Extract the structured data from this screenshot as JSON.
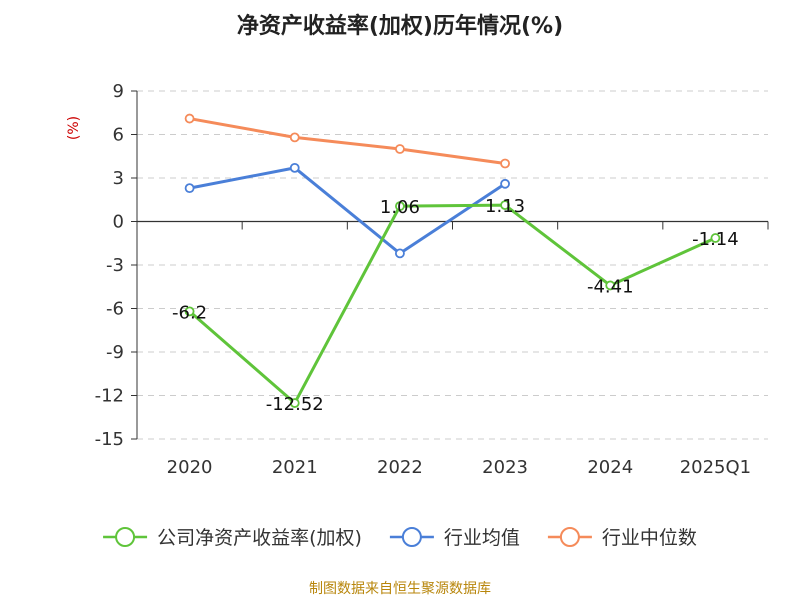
{
  "chart_data": {
    "type": "line",
    "title": "净资产收益率(加权)历年情况(%)",
    "ylabel": "(%)",
    "categories": [
      "2020",
      "2021",
      "2022",
      "2023",
      "2024",
      "2025Q1"
    ],
    "ylim": [
      -15,
      9
    ],
    "yticks": [
      9,
      6,
      3,
      0,
      -3,
      -6,
      -9,
      -12,
      -15
    ],
    "series": [
      {
        "name": "公司净资产收益率(加权)",
        "color": "#5fc43a",
        "values": [
          -6.2,
          -12.52,
          1.06,
          1.13,
          -4.41,
          -1.14
        ],
        "labels": [
          "-6.2",
          "-12.52",
          "1.06",
          "1.13",
          "-4.41",
          "-1.14"
        ]
      },
      {
        "name": "行业均值",
        "color": "#4a7fd8",
        "values": [
          2.3,
          3.7,
          -2.2,
          2.6,
          null,
          null
        ]
      },
      {
        "name": "行业中位数",
        "color": "#f58b5a",
        "values": [
          7.1,
          5.8,
          5.0,
          4.0,
          null,
          null
        ]
      }
    ],
    "grid": true,
    "legend": "bottom"
  },
  "source": "制图数据来自恒生聚源数据库"
}
